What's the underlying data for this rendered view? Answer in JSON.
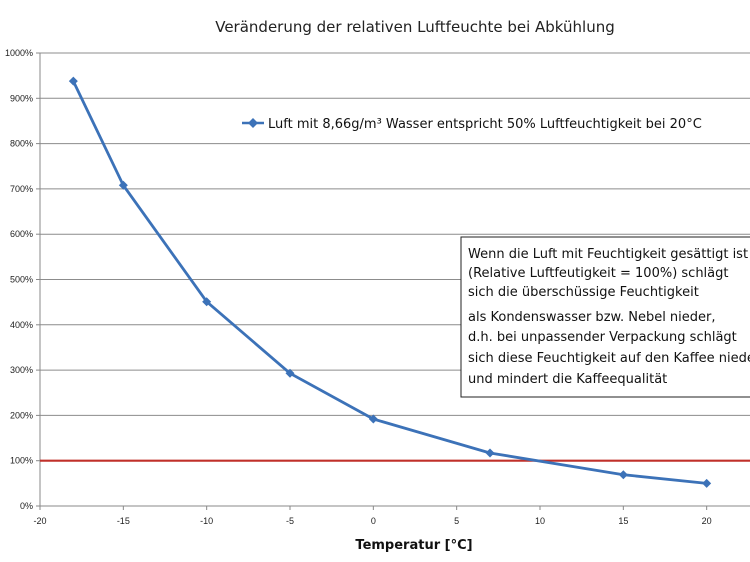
{
  "chart_data": {
    "type": "line",
    "title": "Veränderung  der relativen  Luftfeuchte  bei Abkühlung",
    "xlabel": "Temperatur [°C]",
    "ylabel": "",
    "xlim": [
      -20,
      25
    ],
    "ylim": [
      0,
      1000
    ],
    "x_ticks": [
      -20,
      -15,
      -10,
      -5,
      0,
      5,
      10,
      15,
      20
    ],
    "x_tick_labels": [
      "-20",
      "-15",
      "-10",
      "-5",
      "0",
      "5",
      "10",
      "15",
      "20"
    ],
    "y_ticks": [
      0,
      100,
      200,
      300,
      400,
      500,
      600,
      700,
      800,
      900,
      1000
    ],
    "y_tick_labels": [
      "0%",
      "100%",
      "200%",
      "300%",
      "400%",
      "500%",
      "600%",
      "700%",
      "800%",
      "900%",
      "1000%"
    ],
    "grid": true,
    "legend_position": "top-right",
    "series": [
      {
        "name": "Luft mit 8,66g/m³ Wasser entspricht 50% Luftfeuchtigkeit bei 20°C",
        "color": "#3c72b8",
        "marker": "diamond",
        "x": [
          -18,
          -15,
          -10,
          -5,
          0,
          7,
          15,
          20
        ],
        "y": [
          938,
          708,
          451,
          293,
          192,
          117,
          69,
          50
        ]
      }
    ],
    "reference_line": {
      "y": 100,
      "color": "#c0302a"
    },
    "annotation": {
      "lines": [
        "Wenn die Luft mit Feuchtigkeit gesättigt ist",
        "(Relative Luftfeutigkeit  = 100%) schlägt",
        "sich die überschüssige Feuchtigkeit",
        "als Kondenswasser bzw. Nebel nieder,",
        "d.h. bei unpassender Verpackung schlägt",
        "sich diese Feuchtigkeit auf den Kaffee nieder",
        "und mindert die Kaffeequalität"
      ]
    }
  }
}
